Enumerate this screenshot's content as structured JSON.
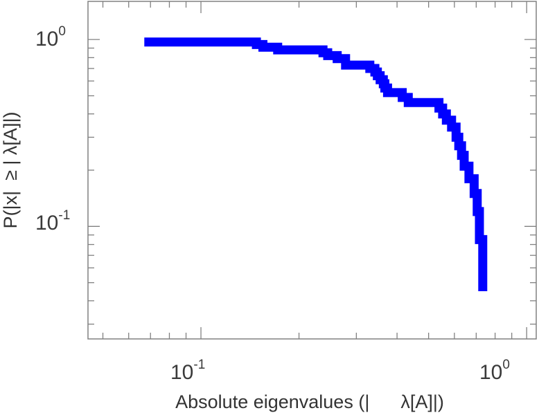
{
  "chart_data": {
    "type": "line",
    "xlabel": "Absolute eigenvalues (|      λ[A]|)",
    "ylabel": "P(|x|  ≥ | λ[A]|)",
    "xscale": "log",
    "yscale": "log",
    "xlim": [
      0.045,
      1.07
    ],
    "ylim": [
      0.025,
      1.6
    ],
    "grid": false,
    "x_ticks": [
      {
        "base": "10",
        "exp": "-1",
        "value": 0.1
      },
      {
        "base": "10",
        "exp": "0",
        "value": 1
      }
    ],
    "y_ticks": [
      {
        "base": "10",
        "exp": "-1",
        "value": 0.1
      },
      {
        "base": "10",
        "exp": "0",
        "value": 1
      }
    ],
    "series": [
      {
        "color": "#0000ff",
        "step": true,
        "x": [
          0.067,
          0.14,
          0.148,
          0.155,
          0.163,
          0.172,
          0.178,
          0.225,
          0.237,
          0.245,
          0.262,
          0.278,
          0.315,
          0.33,
          0.342,
          0.348,
          0.355,
          0.363,
          0.367,
          0.374,
          0.393,
          0.415,
          0.433,
          0.529,
          0.538,
          0.552,
          0.567,
          0.588,
          0.607,
          0.619,
          0.631,
          0.643,
          0.665,
          0.69,
          0.705,
          0.716,
          0.733
        ],
        "y": [
          0.97,
          0.97,
          0.94,
          0.91,
          0.91,
          0.88,
          0.88,
          0.88,
          0.85,
          0.82,
          0.79,
          0.73,
          0.73,
          0.7,
          0.67,
          0.64,
          0.61,
          0.58,
          0.55,
          0.52,
          0.52,
          0.49,
          0.46,
          0.46,
          0.43,
          0.4,
          0.37,
          0.34,
          0.3,
          0.27,
          0.24,
          0.21,
          0.18,
          0.15,
          0.12,
          0.085,
          0.045
        ]
      }
    ]
  }
}
